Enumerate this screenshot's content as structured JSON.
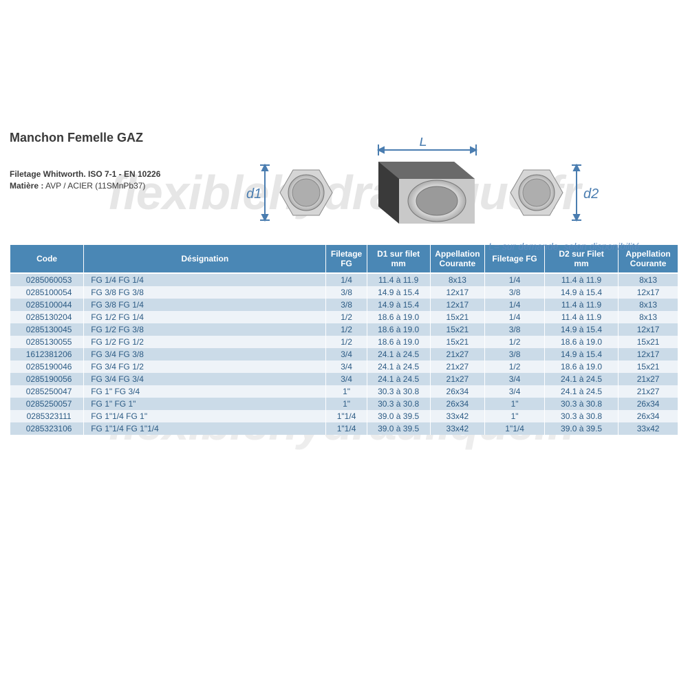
{
  "watermark_text": "flexiblehydraulique.fr",
  "title": "Manchon Femelle GAZ",
  "spec_line1_label": "Filetage Whitworth. ISO 7-1 - EN 10226",
  "spec_line2_label": "Matière :",
  "spec_line2_value": " AVP / ACIER (11SMnPb37)",
  "note": "L= sur demande, selon disponibilité",
  "dim_d1": "d1",
  "dim_d2": "d2",
  "dim_L": "L",
  "colors": {
    "header_bg": "#4a87b5",
    "row_even": "#cbdbe8",
    "row_odd": "#eef3f8",
    "text_blue": "#2c5b84",
    "dim_blue": "#4a7db0",
    "watermark": "#e6e6e6"
  },
  "columns": [
    {
      "key": "code",
      "label": "Code"
    },
    {
      "key": "designation",
      "label": "Désignation"
    },
    {
      "key": "fg1",
      "label": "Filetage\nFG"
    },
    {
      "key": "d1",
      "label": "D1 sur filet\nmm"
    },
    {
      "key": "ap1",
      "label": "Appellation\nCourante"
    },
    {
      "key": "fg2",
      "label": "Filetage FG"
    },
    {
      "key": "d2",
      "label": "D2 sur Filet\nmm"
    },
    {
      "key": "ap2",
      "label": "Appellation\nCourante"
    }
  ],
  "rows": [
    {
      "code": "0285060053",
      "designation": "FG 1/4 FG 1/4",
      "fg1": "1/4",
      "d1": "11.4 à 11.9",
      "ap1": "8x13",
      "fg2": "1/4",
      "d2": "11.4 à 11.9",
      "ap2": "8x13"
    },
    {
      "code": "0285100054",
      "designation": "FG 3/8 FG 3/8",
      "fg1": "3/8",
      "d1": "14.9 à 15.4",
      "ap1": "12x17",
      "fg2": "3/8",
      "d2": "14.9 à 15.4",
      "ap2": "12x17"
    },
    {
      "code": "0285100044",
      "designation": "FG 3/8 FG 1/4",
      "fg1": "3/8",
      "d1": "14.9 à 15.4",
      "ap1": "12x17",
      "fg2": "1/4",
      "d2": "11.4 à 11.9",
      "ap2": "8x13"
    },
    {
      "code": "0285130204",
      "designation": "FG 1/2 FG 1/4",
      "fg1": "1/2",
      "d1": "18.6 à 19.0",
      "ap1": "15x21",
      "fg2": "1/4",
      "d2": "11.4 à 11.9",
      "ap2": "8x13"
    },
    {
      "code": "0285130045",
      "designation": "FG 1/2 FG 3/8",
      "fg1": "1/2",
      "d1": "18.6 à 19.0",
      "ap1": "15x21",
      "fg2": "3/8",
      "d2": "14.9 à 15.4",
      "ap2": "12x17"
    },
    {
      "code": "0285130055",
      "designation": "FG 1/2 FG 1/2",
      "fg1": "1/2",
      "d1": "18.6 à 19.0",
      "ap1": "15x21",
      "fg2": "1/2",
      "d2": "18.6 à 19.0",
      "ap2": "15x21"
    },
    {
      "code": "1612381206",
      "designation": "FG 3/4 FG 3/8",
      "fg1": "3/4",
      "d1": "24.1 à 24.5",
      "ap1": "21x27",
      "fg2": "3/8",
      "d2": "14.9 à 15.4",
      "ap2": "12x17"
    },
    {
      "code": "0285190046",
      "designation": "FG 3/4 FG 1/2",
      "fg1": "3/4",
      "d1": "24.1 à 24.5",
      "ap1": "21x27",
      "fg2": "1/2",
      "d2": "18.6 à 19.0",
      "ap2": "15x21"
    },
    {
      "code": "0285190056",
      "designation": "FG 3/4 FG 3/4",
      "fg1": "3/4",
      "d1": "24.1 à 24.5",
      "ap1": "21x27",
      "fg2": "3/4",
      "d2": "24.1 à 24.5",
      "ap2": "21x27"
    },
    {
      "code": "0285250047",
      "designation": "FG 1\" FG 3/4",
      "fg1": "1\"",
      "d1": "30.3 à 30.8",
      "ap1": "26x34",
      "fg2": "3/4",
      "d2": "24.1 à 24.5",
      "ap2": "21x27"
    },
    {
      "code": "0285250057",
      "designation": "FG 1\" FG 1\"",
      "fg1": "1\"",
      "d1": "30.3 à 30.8",
      "ap1": "26x34",
      "fg2": "1\"",
      "d2": "30.3 à 30.8",
      "ap2": "26x34"
    },
    {
      "code": "0285323111",
      "designation": "FG 1\"1/4 FG 1\"",
      "fg1": "1\"1/4",
      "d1": "39.0 à 39.5",
      "ap1": "33x42",
      "fg2": "1\"",
      "d2": "30.3 à 30.8",
      "ap2": "26x34"
    },
    {
      "code": "0285323106",
      "designation": "FG 1\"1/4 FG 1\"1/4",
      "fg1": "1\"1/4",
      "d1": "39.0 à 39.5",
      "ap1": "33x42",
      "fg2": "1\"1/4",
      "d2": "39.0 à 39.5",
      "ap2": "33x42"
    }
  ]
}
